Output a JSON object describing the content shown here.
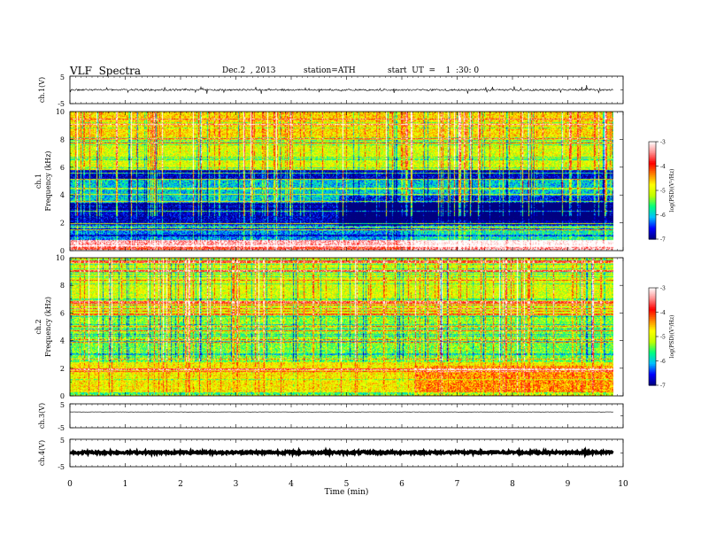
{
  "header": {
    "title": "VLF  Spectra",
    "date": "Dec.2  , 2013",
    "station": "station=ATH",
    "start": "start  UT  =    1  :30: 0"
  },
  "chart_data": [
    {
      "type": "line",
      "name": "ch1-waveform",
      "ylabel": "ch.1(V)",
      "ylim": [
        -5,
        5
      ],
      "y_ticklabels": [
        "5",
        "-5"
      ],
      "xlim": [
        0,
        10
      ],
      "x_data_range": [
        0,
        9.82
      ],
      "baseline": 0,
      "noise_amplitude": 0.3,
      "spike_max": 1.5
    },
    {
      "type": "heatmap",
      "name": "ch1-spectrogram",
      "ylabel_top": "ch.1",
      "ylabel": "Frequency  (kHz)",
      "ylim": [
        0,
        10
      ],
      "y_ticklabels": [
        "0",
        "2",
        "4",
        "6",
        "8",
        "10"
      ],
      "xlim": [
        0,
        10
      ],
      "x_data_range": [
        0,
        9.82
      ],
      "colorbar": {
        "label": "log(PSD)(V²/Hz)",
        "range": [
          -7,
          -3
        ],
        "ticklabels": [
          "-3",
          "-4",
          "-5",
          "-6",
          "-7"
        ]
      },
      "bands_khz_logpsd": [
        {
          "from": 0,
          "to": 0.3,
          "value": -3.8
        },
        {
          "from": 0.3,
          "to": 0.8,
          "value": -3.3
        },
        {
          "from": 0.8,
          "to": 2.0,
          "value": -6.2
        },
        {
          "from": 2.0,
          "to": 3.5,
          "value": -6.8
        },
        {
          "from": 3.5,
          "to": 5.2,
          "value": -6.0
        },
        {
          "from": 5.2,
          "to": 5.8,
          "value": -6.8
        },
        {
          "from": 5.8,
          "to": 8.0,
          "value": -5.0
        },
        {
          "from": 8.0,
          "to": 10.0,
          "value": -4.7
        }
      ],
      "level_shift_minutes": [
        4.85,
        6.22
      ]
    },
    {
      "type": "heatmap",
      "name": "ch2-spectrogram",
      "ylabel_top": "ch.2",
      "ylabel": "Frequency  (kHz)",
      "ylim": [
        0,
        10
      ],
      "y_ticklabels": [
        "0",
        "2",
        "4",
        "6",
        "8",
        "10"
      ],
      "xlim": [
        0,
        10
      ],
      "x_data_range": [
        0,
        9.82
      ],
      "colorbar": {
        "label": "log(PSD)(V²/Hz)",
        "range": [
          -7,
          -3
        ],
        "ticklabels": [
          "-3",
          "-4",
          "-5",
          "-6",
          "-7"
        ]
      },
      "bands_khz_logpsd": [
        {
          "from": 0,
          "to": 0.3,
          "value": -5.0
        },
        {
          "from": 0.3,
          "to": 2.5,
          "value": -4.8
        },
        {
          "from": 2.5,
          "to": 4.0,
          "value": -5.4
        },
        {
          "from": 4.0,
          "to": 6.0,
          "value": -5.3
        },
        {
          "from": 6.0,
          "to": 10.0,
          "value": -5.0
        }
      ],
      "level_shift_minutes": [
        4.85,
        6.22
      ]
    },
    {
      "type": "line",
      "name": "ch3-waveform",
      "ylabel": "ch.3(V)",
      "ylim": [
        -5,
        5
      ],
      "y_ticklabels": [
        "5",
        "-5"
      ],
      "xlim": [
        0,
        10
      ],
      "x_data_range": [
        0,
        9.82
      ],
      "baseline": 1.6,
      "noise_amplitude": 0.05
    },
    {
      "type": "line",
      "name": "ch4-waveform",
      "ylabel": "ch.4(V)",
      "ylim": [
        -5,
        5
      ],
      "y_ticklabels": [
        "5",
        "-5"
      ],
      "xlim": [
        0,
        10
      ],
      "x_data_range": [
        0,
        9.82
      ],
      "baseline": 0.2,
      "noise_amplitude": 0.4,
      "xlabel": "Time  (min)",
      "x_ticklabels": [
        "0",
        "1",
        "2",
        "3",
        "4",
        "5",
        "6",
        "7",
        "8",
        "9",
        "10"
      ]
    }
  ],
  "colors": {
    "frame": "#000000",
    "colormap": [
      "#000080",
      "#0000ff",
      "#00bfff",
      "#00ff80",
      "#c0ff00",
      "#ffff00",
      "#ff8000",
      "#ff0000",
      "#ff9090",
      "#ffffff"
    ]
  }
}
